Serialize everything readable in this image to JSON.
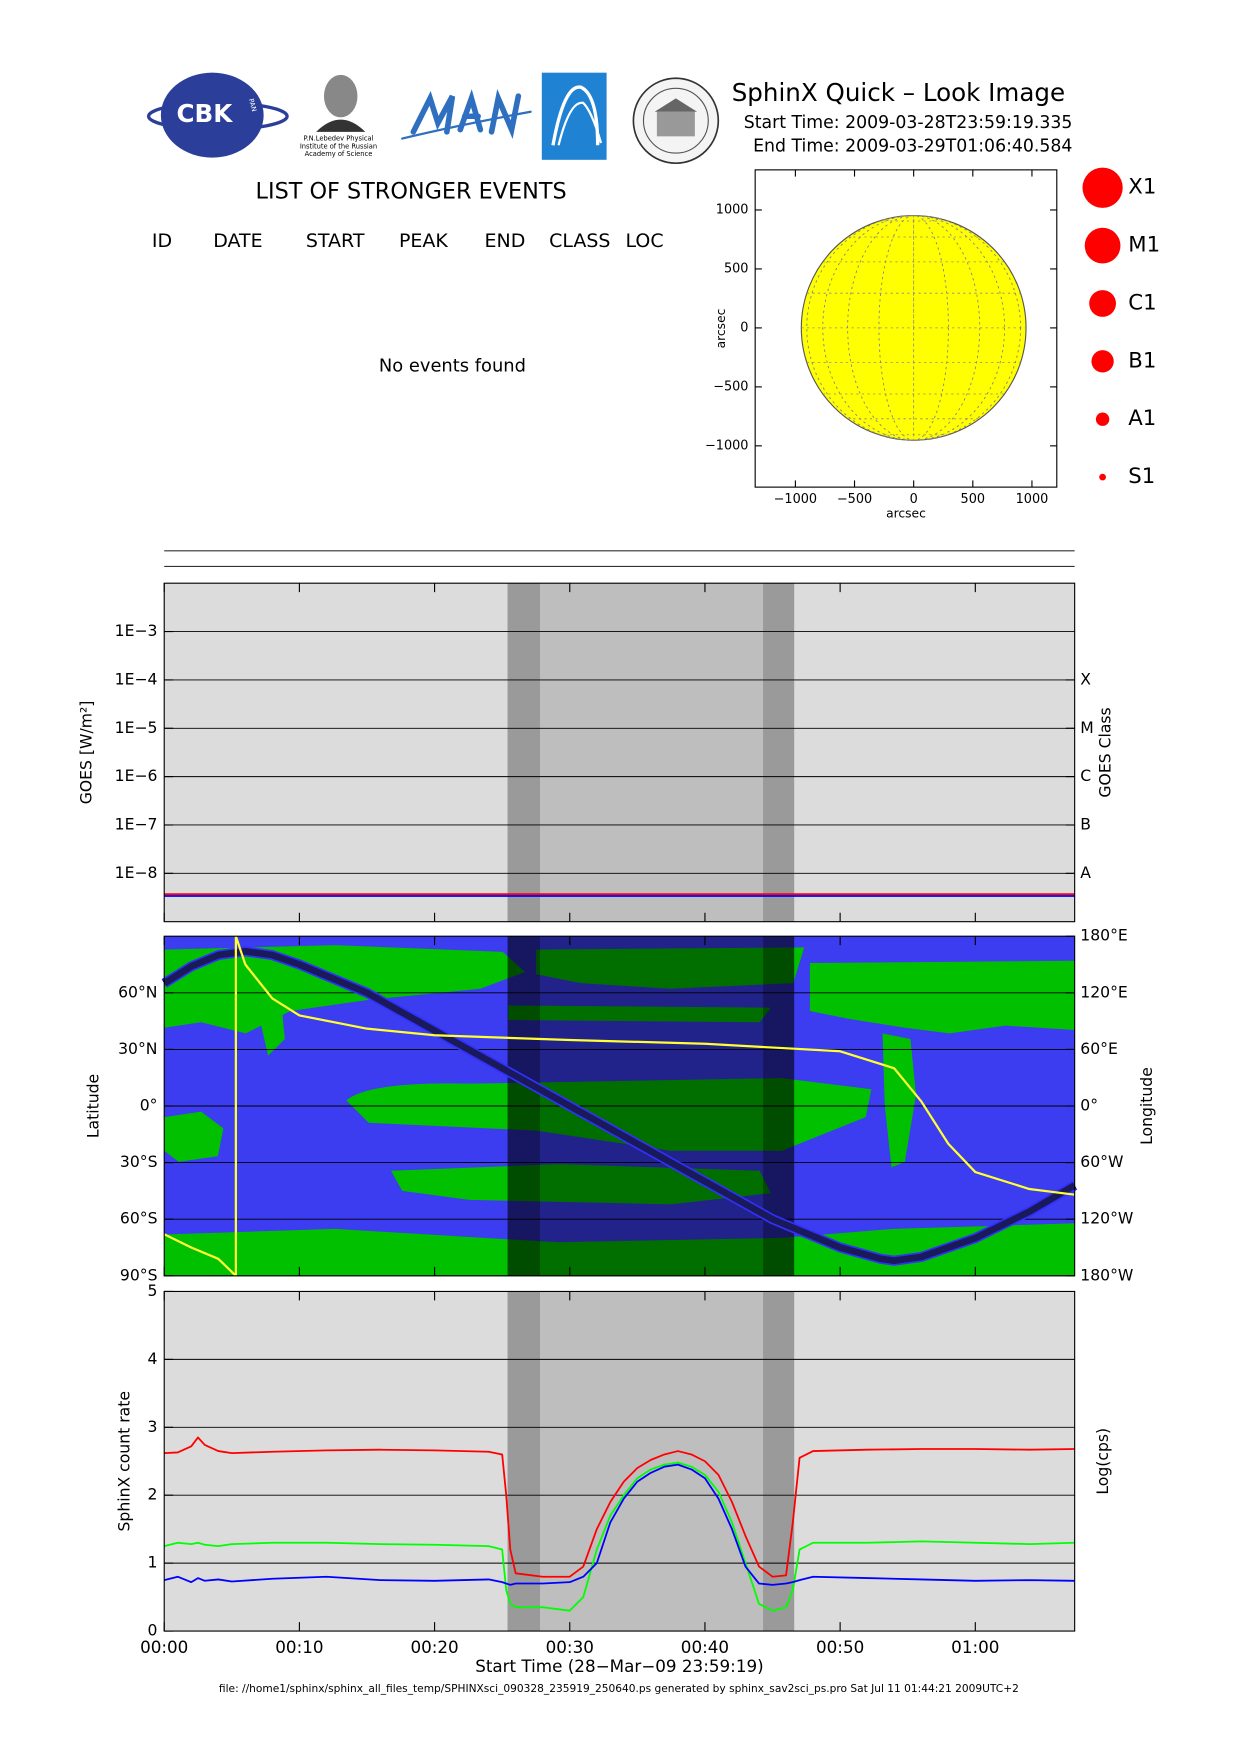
{
  "header": {
    "title": "SphinX Quick – Look Image",
    "start_time": "Start Time: 2009-03-28T23:59:19.335",
    "end_time": "End Time: 2009-03-29T01:06:40.584"
  },
  "logos": {
    "cbk": "CBK",
    "pan": "PAN",
    "lebedev": [
      "P.N.Lebedev Physical",
      "Institute of the Russian",
      "Academy of Science"
    ]
  },
  "events": {
    "title": "LIST OF STRONGER EVENTS",
    "columns": [
      "ID",
      "DATE",
      "START",
      "PEAK",
      "END",
      "CLASS",
      "LOC"
    ],
    "message": "No events found"
  },
  "flare_legend": [
    "X1",
    "M1",
    "C1",
    "B1",
    "A1",
    "S1"
  ],
  "shading": {
    "eclipse": [
      25.4,
      46.6
    ],
    "night": [
      [
        25.4,
        27.8
      ],
      [
        44.3,
        46.6
      ]
    ]
  },
  "footer": "file: //home1/sphinx/sphinx_all_files_temp/SPHINXsci_090328_235919_250640.ps generated by sphinx_sav2sci_ps.pro Sat Jul 11 01:44:21 2009UTC+2",
  "chart_data": [
    {
      "type": "disk",
      "xlabel": "arcsec",
      "ylabel": "arcsec",
      "xlim": [
        -1340,
        1210
      ],
      "ylim": [
        -1350,
        1340
      ],
      "xticks": [
        {
          "value": -1000,
          "label": "−1000"
        },
        {
          "value": -500,
          "label": "−500"
        },
        0,
        500,
        1000
      ],
      "yticks": [
        {
          "value": -1000,
          "label": "−1000"
        },
        {
          "value": -500,
          "label": "−500"
        },
        0,
        500,
        1000
      ],
      "radius": 950,
      "color": "#ffff00"
    },
    {
      "type": "line",
      "yscale": "log",
      "ylabel": "GOES [W/m²]",
      "y2label": "GOES Class",
      "xlim": [
        0,
        67.35
      ],
      "ylim": [
        1e-09,
        0.01
      ],
      "yticks": [
        {
          "value": 1e-08,
          "label": "1E−8"
        },
        {
          "value": 1e-07,
          "label": "1E−7"
        },
        {
          "value": 1e-06,
          "label": "1E−6"
        },
        {
          "value": 1e-05,
          "label": "1E−5"
        },
        {
          "value": 0.0001,
          "label": "1E−4"
        },
        {
          "value": 0.001,
          "label": "1E−3"
        }
      ],
      "y2lim": [
        1e-09,
        0.01
      ],
      "y2ticks": [
        {
          "value": 1e-08,
          "label": "A"
        },
        {
          "value": 1e-07,
          "label": "B"
        },
        {
          "value": 1e-06,
          "label": "C"
        },
        {
          "value": 1e-05,
          "label": "M"
        },
        {
          "value": 0.0001,
          "label": "X"
        }
      ],
      "grid": true,
      "x": [
        0,
        67.35
      ],
      "series": [
        {
          "color": "#ff0000",
          "values": [
            3.7e-09,
            3.7e-09
          ]
        },
        {
          "color": "#0000ff",
          "values": [
            3.4e-09,
            3.4e-09
          ]
        }
      ]
    },
    {
      "type": "map",
      "ylabel": "Latitude",
      "y2label": "Longitude",
      "xlim": [
        0,
        67.35
      ],
      "ylim": [
        -90,
        90
      ],
      "yticks": [
        {
          "value": -90,
          "label": "90°S"
        },
        {
          "value": -60,
          "label": "60°S"
        },
        {
          "value": -30,
          "label": "30°S"
        },
        {
          "value": 0,
          "label": "0°"
        },
        {
          "value": 30,
          "label": "30°N"
        },
        {
          "value": 60,
          "label": "60°N"
        }
      ],
      "y2lim": [
        -180,
        180
      ],
      "y2ticks": [
        {
          "value": -180,
          "label": "180°W"
        },
        {
          "value": -120,
          "label": "120°W"
        },
        {
          "value": -60,
          "label": "60°W"
        },
        {
          "value": 0,
          "label": "0°"
        },
        {
          "value": 60,
          "label": "60°E"
        },
        {
          "value": 120,
          "label": "120°E"
        },
        {
          "value": 180,
          "label": "180°E"
        }
      ],
      "grid": true,
      "series": [
        {
          "color": "#1a1a5a",
          "x": [
            0,
            2,
            4,
            6,
            8,
            10,
            15,
            20,
            30,
            40,
            45,
            50,
            53,
            54,
            56,
            60,
            64,
            67.35
          ],
          "values": [
            65,
            74,
            80,
            82,
            80,
            75,
            60,
            40,
            0,
            -40,
            -60,
            -75,
            -81,
            -82,
            -80,
            -70,
            -56,
            -42
          ]
        },
        {
          "color": "#ffff33",
          "axis": "y2",
          "x": [
            0,
            2,
            4,
            5.3,
            5.3,
            6,
            8,
            10,
            15,
            20,
            30,
            40,
            50,
            54,
            56,
            58,
            60,
            64,
            67.35
          ],
          "values": [
            -136,
            -150,
            -162,
            -180,
            180,
            150,
            114,
            96,
            82,
            75,
            70,
            66,
            58,
            40,
            5,
            -40,
            -70,
            -88,
            -94
          ]
        }
      ]
    },
    {
      "type": "line",
      "ylabel": "SphinX count rate",
      "y2label": "Log(cps)",
      "xlabel": "Start Time (28−Mar−09 23:59:19)",
      "xlim": [
        0,
        67.35
      ],
      "ylim": [
        0,
        5
      ],
      "yticks": [
        0,
        1,
        2,
        3,
        4,
        5
      ],
      "xticks": [
        {
          "value": 0,
          "label": "00:00"
        },
        {
          "value": 10,
          "label": "00:10"
        },
        {
          "value": 20,
          "label": "00:20"
        },
        {
          "value": 30,
          "label": "00:30"
        },
        {
          "value": 40,
          "label": "00:40"
        },
        {
          "value": 50,
          "label": "00:50"
        },
        {
          "value": 60,
          "label": "01:00"
        }
      ],
      "grid": true,
      "x": [
        0,
        1,
        2,
        2.5,
        3,
        4,
        5,
        8,
        12,
        16,
        20,
        24,
        25,
        25.3,
        25.6,
        26,
        28,
        30,
        31,
        32,
        33,
        34,
        35,
        36,
        37,
        38,
        39,
        40,
        41,
        42,
        43,
        44,
        45,
        46,
        46.5,
        47,
        48,
        52,
        56,
        60,
        64,
        67.35
      ],
      "series": [
        {
          "color": "#ff0000",
          "values": [
            2.62,
            2.63,
            2.72,
            2.85,
            2.74,
            2.65,
            2.62,
            2.64,
            2.66,
            2.67,
            2.66,
            2.64,
            2.6,
            2.0,
            1.2,
            0.85,
            0.8,
            0.8,
            0.95,
            1.5,
            1.9,
            2.2,
            2.4,
            2.52,
            2.6,
            2.65,
            2.6,
            2.5,
            2.3,
            1.9,
            1.4,
            0.95,
            0.8,
            0.82,
            1.6,
            2.55,
            2.65,
            2.67,
            2.68,
            2.68,
            2.67,
            2.68
          ]
        },
        {
          "color": "#00ff00",
          "values": [
            1.25,
            1.3,
            1.28,
            1.3,
            1.27,
            1.25,
            1.28,
            1.3,
            1.3,
            1.28,
            1.27,
            1.25,
            1.2,
            0.6,
            0.4,
            0.35,
            0.35,
            0.3,
            0.5,
            1.2,
            1.7,
            2.0,
            2.25,
            2.38,
            2.45,
            2.48,
            2.42,
            2.3,
            2.05,
            1.6,
            1.0,
            0.4,
            0.3,
            0.35,
            0.6,
            1.2,
            1.3,
            1.3,
            1.32,
            1.3,
            1.28,
            1.3
          ]
        },
        {
          "color": "#0000ff",
          "values": [
            0.75,
            0.8,
            0.72,
            0.78,
            0.74,
            0.76,
            0.73,
            0.77,
            0.8,
            0.75,
            0.74,
            0.76,
            0.72,
            0.7,
            0.68,
            0.7,
            0.7,
            0.72,
            0.8,
            1.0,
            1.6,
            1.95,
            2.2,
            2.33,
            2.42,
            2.45,
            2.38,
            2.25,
            1.95,
            1.5,
            0.95,
            0.7,
            0.68,
            0.7,
            0.72,
            0.75,
            0.8,
            0.78,
            0.76,
            0.74,
            0.75,
            0.74
          ]
        }
      ]
    }
  ]
}
